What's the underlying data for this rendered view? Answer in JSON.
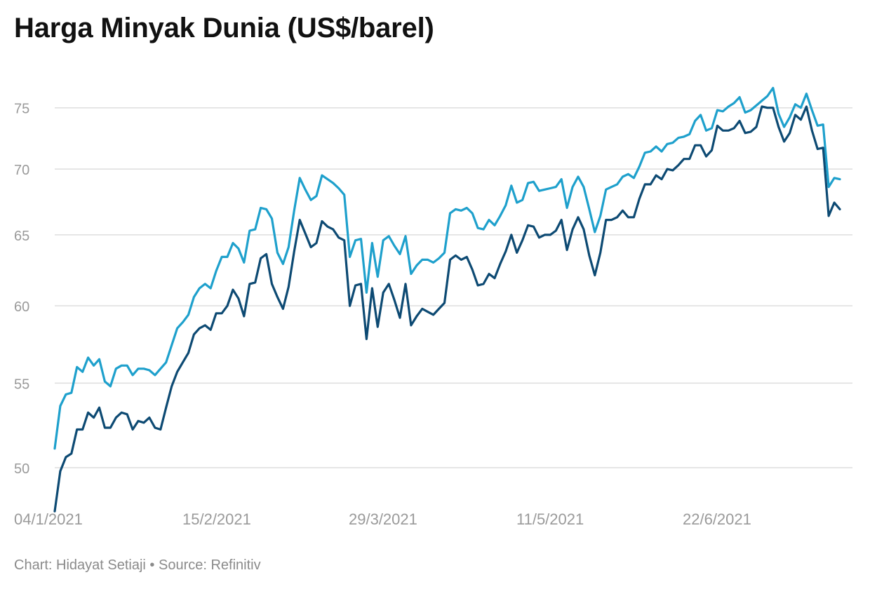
{
  "chart_title": "Harga Minyak Dunia (US$/barel)",
  "footer": "Chart: Hidayat Setiaji • Source: Refinitiv",
  "colors": {
    "light_line": "#1ea0cc",
    "dark_line": "#0d4a73",
    "grid": "#dedede",
    "tick_label": "#9a9a9a",
    "footer_text": "#8a8a8a"
  },
  "chart_data": {
    "type": "line",
    "title": "Harga Minyak Dunia (US$/barel)",
    "xlabel": "",
    "ylabel": "",
    "y_scale": "log",
    "y_ticks": [
      50,
      55,
      60,
      65,
      70,
      75
    ],
    "ylim": [
      48.1,
      78.5
    ],
    "x_ticks": [
      "04/1/2021",
      "15/2/2021",
      "29/3/2021",
      "11/5/2021",
      "22/6/2021"
    ],
    "grid": true,
    "legend": "none",
    "series": [
      {
        "color": "#1ea0cc",
        "values": [
          51.09,
          53.6,
          54.3,
          54.4,
          56.0,
          55.7,
          56.6,
          56.1,
          56.5,
          55.1,
          54.8,
          55.9,
          56.1,
          56.1,
          55.5,
          55.9,
          55.9,
          55.8,
          55.5,
          55.9,
          56.3,
          57.4,
          58.5,
          58.9,
          59.4,
          60.6,
          61.2,
          61.5,
          61.2,
          62.4,
          63.4,
          63.4,
          64.4,
          64.0,
          63.0,
          65.3,
          65.4,
          67.0,
          66.9,
          66.2,
          63.7,
          62.9,
          64.1,
          66.8,
          69.3,
          68.4,
          67.6,
          67.9,
          69.5,
          69.2,
          68.9,
          68.5,
          68.0,
          63.4,
          64.6,
          64.7,
          60.9,
          64.4,
          62.0,
          64.6,
          64.9,
          64.2,
          63.6,
          64.9,
          62.2,
          62.8,
          63.2,
          63.2,
          63.0,
          63.3,
          63.7,
          66.6,
          66.9,
          66.8,
          67.0,
          66.6,
          65.5,
          65.4,
          66.1,
          65.7,
          66.4,
          67.2,
          68.7,
          67.4,
          67.6,
          68.9,
          69.0,
          68.3,
          68.4,
          68.5,
          68.6,
          69.2,
          67.0,
          68.6,
          69.4,
          68.6,
          66.9,
          65.2,
          66.4,
          68.4,
          68.6,
          68.8,
          69.4,
          69.6,
          69.3,
          70.2,
          71.3,
          71.4,
          71.8,
          71.4,
          72.0,
          72.1,
          72.5,
          72.6,
          72.8,
          73.9,
          74.4,
          73.1,
          73.3,
          74.8,
          74.7,
          75.1,
          75.4,
          75.9,
          74.6,
          74.8,
          75.2,
          75.6,
          76.0,
          76.7,
          74.5,
          73.4,
          74.2,
          75.3,
          75.0,
          76.2,
          74.8,
          73.5,
          73.6,
          68.6,
          69.3,
          69.2
        ]
      },
      {
        "color": "#0d4a73",
        "values": [
          47.6,
          49.8,
          50.6,
          50.8,
          52.2,
          52.2,
          53.2,
          52.9,
          53.5,
          52.3,
          52.3,
          52.9,
          53.2,
          53.1,
          52.2,
          52.7,
          52.6,
          52.9,
          52.3,
          52.2,
          53.5,
          54.8,
          55.7,
          56.3,
          56.9,
          58.1,
          58.5,
          58.7,
          58.4,
          59.5,
          59.5,
          60.0,
          61.1,
          60.5,
          59.3,
          61.5,
          61.6,
          63.3,
          63.6,
          61.5,
          60.6,
          59.8,
          61.3,
          63.8,
          66.1,
          65.1,
          64.1,
          64.4,
          66.0,
          65.6,
          65.4,
          64.8,
          64.6,
          60.0,
          61.4,
          61.5,
          57.8,
          61.2,
          58.6,
          60.9,
          61.5,
          60.4,
          59.2,
          61.5,
          58.7,
          59.3,
          59.8,
          59.6,
          59.4,
          59.8,
          60.2,
          63.2,
          63.5,
          63.2,
          63.4,
          62.5,
          61.4,
          61.5,
          62.2,
          61.9,
          62.9,
          63.8,
          65.0,
          63.7,
          64.6,
          65.7,
          65.6,
          64.8,
          65.0,
          65.0,
          65.3,
          66.1,
          63.9,
          65.4,
          66.3,
          65.4,
          63.5,
          62.1,
          63.7,
          66.1,
          66.1,
          66.3,
          66.8,
          66.3,
          66.3,
          67.7,
          68.8,
          68.8,
          69.5,
          69.2,
          70.0,
          69.9,
          70.3,
          70.8,
          70.8,
          71.9,
          71.9,
          71.0,
          71.5,
          73.5,
          73.1,
          73.1,
          73.3,
          73.9,
          72.9,
          73.0,
          73.4,
          75.1,
          75.0,
          75.0,
          73.4,
          72.2,
          72.9,
          74.4,
          74.0,
          75.1,
          73.1,
          71.6,
          71.7,
          66.4,
          67.4,
          66.9
        ]
      }
    ]
  }
}
